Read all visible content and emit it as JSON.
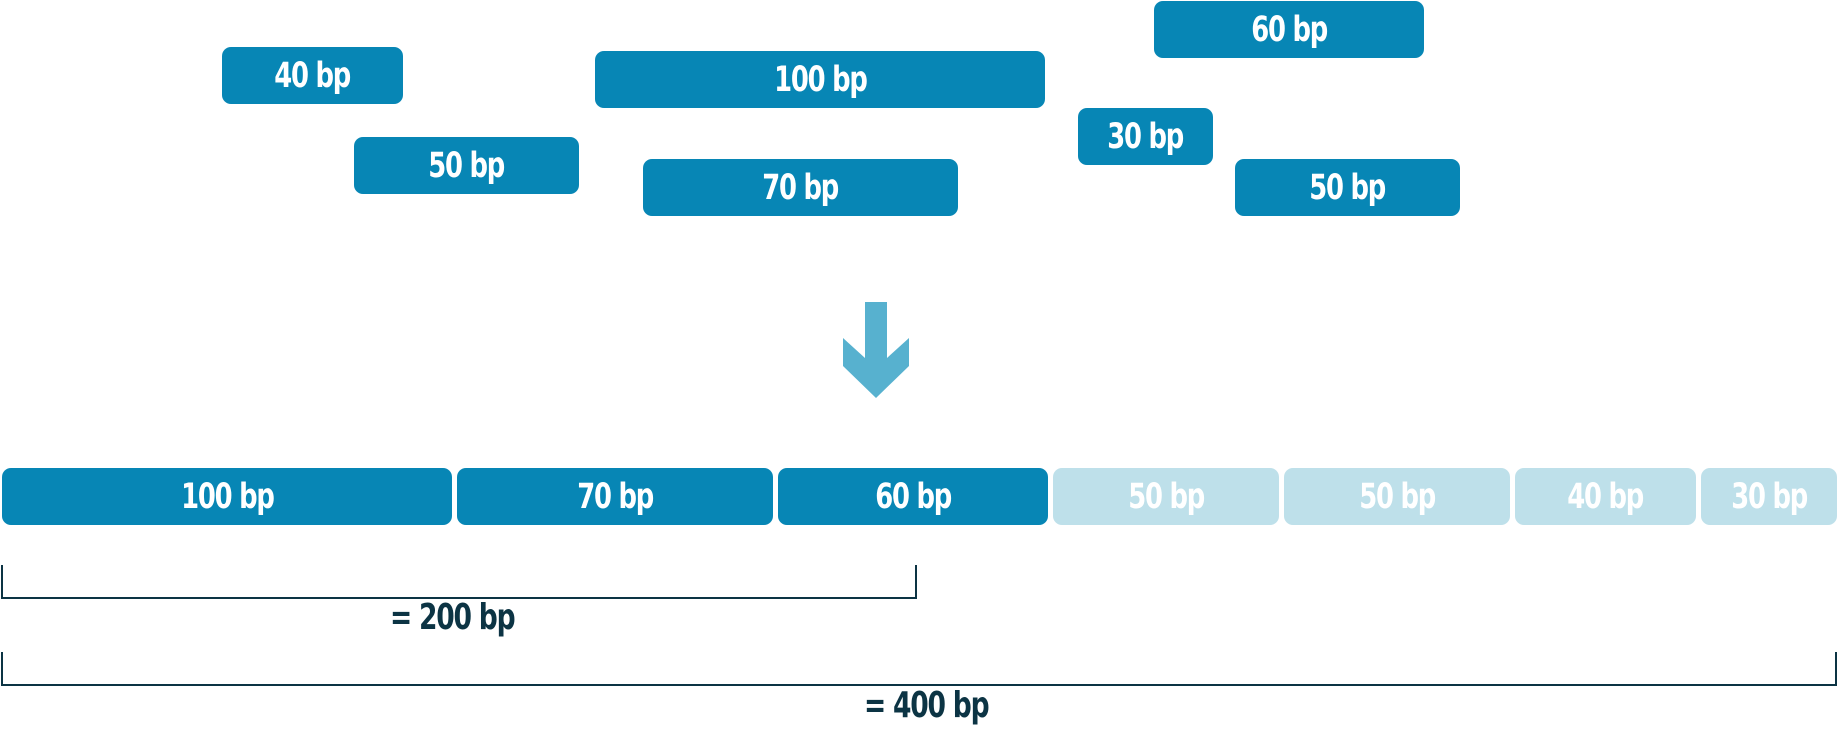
{
  "input_fragments": [
    {
      "label": "40 bp"
    },
    {
      "label": "50 bp"
    },
    {
      "label": "100 bp"
    },
    {
      "label": "70 bp"
    },
    {
      "label": "60 bp"
    },
    {
      "label": "30 bp"
    },
    {
      "label": "50 bp"
    }
  ],
  "sorted_fragments": [
    {
      "label": "100 bp",
      "highlighted": true
    },
    {
      "label": "70 bp",
      "highlighted": true
    },
    {
      "label": "60 bp",
      "highlighted": true
    },
    {
      "label": "50 bp",
      "highlighted": false
    },
    {
      "label": "50 bp",
      "highlighted": false
    },
    {
      "label": "40 bp",
      "highlighted": false
    },
    {
      "label": "30 bp",
      "highlighted": false
    }
  ],
  "sums": {
    "partial": "= 200 bp",
    "total": "= 400 bp"
  },
  "colors": {
    "segment": "#0786b5",
    "segment_faded": "#bee0ea",
    "arrow": "#57b1cf",
    "bracket": "#0c3444"
  },
  "icons": {
    "down_arrow": "down-arrow-icon"
  }
}
